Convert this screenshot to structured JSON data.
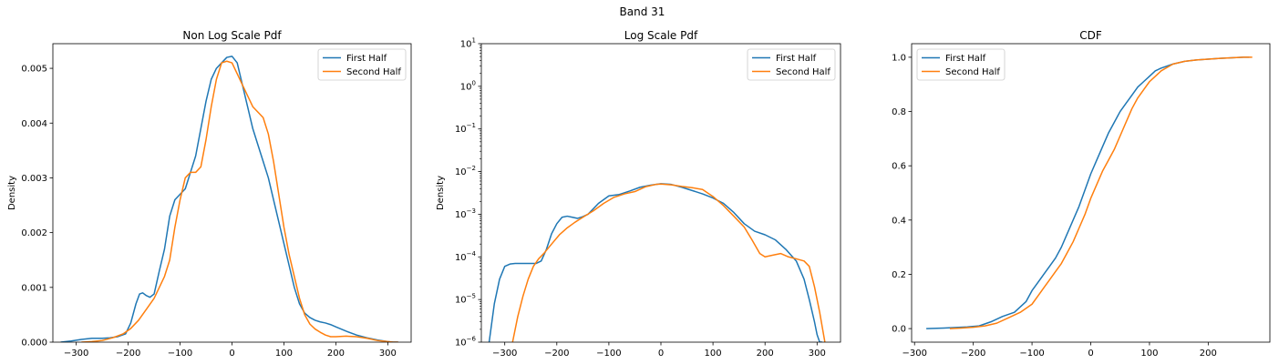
{
  "figure": {
    "title": "Band 31"
  },
  "colors": {
    "first_half": "#1f77b4",
    "second_half": "#ff7f0e"
  },
  "chart_data": [
    {
      "type": "line",
      "title": "Non Log Scale Pdf",
      "xlabel": "",
      "ylabel": "Density",
      "yscale": "linear",
      "xlim": [
        -345,
        345
      ],
      "ylim": [
        0,
        0.00545
      ],
      "xticks": [
        -300,
        -200,
        -100,
        0,
        100,
        200,
        300
      ],
      "xtick_labels": [
        "−300",
        "−200",
        "−100",
        "0",
        "100",
        "200",
        "300"
      ],
      "yticks": [
        0,
        0.001,
        0.002,
        0.003,
        0.004,
        0.005
      ],
      "ytick_labels": [
        "0.000",
        "0.001",
        "0.002",
        "0.003",
        "0.004",
        "0.005"
      ],
      "legend": {
        "position": "top-right",
        "entries": [
          "First Half",
          "Second Half"
        ]
      },
      "grid": false,
      "series": [
        {
          "name": "First Half",
          "color": "#1f77b4",
          "x": [
            -330,
            -310,
            -290,
            -270,
            -250,
            -235,
            -220,
            -205,
            -195,
            -185,
            -178,
            -172,
            -165,
            -158,
            -150,
            -140,
            -130,
            -120,
            -110,
            -100,
            -90,
            -80,
            -70,
            -60,
            -50,
            -40,
            -30,
            -20,
            -10,
            0,
            10,
            20,
            30,
            40,
            50,
            60,
            70,
            80,
            90,
            100,
            110,
            120,
            130,
            140,
            150,
            160,
            170,
            180,
            190,
            200,
            220,
            240,
            260,
            280,
            300,
            310,
            320
          ],
          "y": [
            0,
            2e-05,
            5e-05,
            7e-05,
            7e-05,
            8e-05,
            0.0001,
            0.00015,
            0.00035,
            0.0007,
            0.00088,
            0.0009,
            0.00085,
            0.00082,
            0.00088,
            0.0013,
            0.0017,
            0.0023,
            0.0026,
            0.0027,
            0.0028,
            0.0031,
            0.0034,
            0.0039,
            0.0044,
            0.0048,
            0.005,
            0.0051,
            0.0052,
            0.00522,
            0.0051,
            0.0047,
            0.0043,
            0.0039,
            0.0036,
            0.0033,
            0.003,
            0.0026,
            0.0022,
            0.0018,
            0.0014,
            0.001,
            0.0007,
            0.00053,
            0.00045,
            0.0004,
            0.00037,
            0.00035,
            0.00032,
            0.00028,
            0.0002,
            0.00013,
            8e-05,
            4e-05,
            1e-05,
            0,
            0
          ]
        },
        {
          "name": "Second Half",
          "color": "#ff7f0e",
          "x": [
            -290,
            -270,
            -250,
            -230,
            -210,
            -195,
            -180,
            -165,
            -150,
            -140,
            -130,
            -120,
            -110,
            -100,
            -90,
            -80,
            -70,
            -60,
            -50,
            -40,
            -30,
            -20,
            -10,
            0,
            10,
            20,
            30,
            40,
            50,
            60,
            70,
            80,
            90,
            100,
            110,
            120,
            130,
            140,
            150,
            160,
            170,
            180,
            190,
            200,
            220,
            240,
            260,
            280,
            300,
            310,
            320
          ],
          "y": [
            0,
            1e-05,
            3e-05,
            8e-05,
            0.00015,
            0.00025,
            0.0004,
            0.0006,
            0.0008,
            0.001,
            0.0012,
            0.0015,
            0.0021,
            0.0026,
            0.003,
            0.0031,
            0.0031,
            0.0032,
            0.0037,
            0.0043,
            0.0048,
            0.0051,
            0.00513,
            0.0051,
            0.0049,
            0.0047,
            0.0045,
            0.0043,
            0.0042,
            0.0041,
            0.0038,
            0.0033,
            0.0027,
            0.0021,
            0.0016,
            0.0012,
            0.0008,
            0.0005,
            0.00033,
            0.00024,
            0.00018,
            0.00013,
            0.0001,
            0.0001,
            0.00011,
            0.0001,
            7e-05,
            3e-05,
            1e-05,
            0,
            0
          ]
        }
      ]
    },
    {
      "type": "line",
      "title": "Log Scale Pdf",
      "xlabel": "",
      "ylabel": "Density",
      "yscale": "log",
      "xlim": [
        -345,
        345
      ],
      "ylim": [
        1e-06,
        10
      ],
      "xticks": [
        -300,
        -200,
        -100,
        0,
        100,
        200,
        300
      ],
      "xtick_labels": [
        "−300",
        "−200",
        "−100",
        "0",
        "100",
        "200",
        "300"
      ],
      "yticks": [
        1e-06,
        1e-05,
        0.0001,
        0.001,
        0.01,
        0.1,
        1,
        10
      ],
      "ytick_labels": [
        {
          "base": "10",
          "exp": "−6"
        },
        {
          "base": "10",
          "exp": "−5"
        },
        {
          "base": "10",
          "exp": "−4"
        },
        {
          "base": "10",
          "exp": "−3"
        },
        {
          "base": "10",
          "exp": "−2"
        },
        {
          "base": "10",
          "exp": "−1"
        },
        {
          "base": "10",
          "exp": "0"
        },
        {
          "base": "10",
          "exp": "1"
        }
      ],
      "legend": {
        "position": "top-right",
        "entries": [
          "First Half",
          "Second Half"
        ]
      },
      "grid": false,
      "series": [
        {
          "name": "First Half",
          "color": "#1f77b4",
          "x": [
            -330,
            -320,
            -310,
            -300,
            -290,
            -280,
            -260,
            -240,
            -230,
            -220,
            -210,
            -200,
            -190,
            -180,
            -170,
            -160,
            -150,
            -140,
            -120,
            -100,
            -80,
            -60,
            -40,
            -20,
            0,
            20,
            40,
            60,
            80,
            100,
            120,
            140,
            160,
            180,
            200,
            220,
            240,
            260,
            275,
            285,
            295,
            300,
            305,
            310
          ],
          "y": [
            1e-06,
            8e-06,
            3e-05,
            6e-05,
            6.8e-05,
            7e-05,
            7e-05,
            7e-05,
            8e-05,
            0.00015,
            0.00035,
            0.0006,
            0.00085,
            0.0009,
            0.00085,
            0.0008,
            0.00088,
            0.001,
            0.0018,
            0.0027,
            0.0029,
            0.0035,
            0.0043,
            0.0048,
            0.0052,
            0.005,
            0.0043,
            0.0036,
            0.003,
            0.0024,
            0.0018,
            0.0011,
            0.0006,
            0.0004,
            0.00033,
            0.00025,
            0.00015,
            8e-05,
            3e-05,
            1e-05,
            3e-06,
            1.5e-06,
            1e-06,
            1e-06
          ]
        },
        {
          "name": "Second Half",
          "color": "#ff7f0e",
          "x": [
            -285,
            -275,
            -265,
            -255,
            -245,
            -235,
            -225,
            -210,
            -195,
            -180,
            -165,
            -150,
            -130,
            -110,
            -90,
            -70,
            -50,
            -30,
            -10,
            0,
            20,
            40,
            60,
            80,
            100,
            120,
            140,
            160,
            175,
            190,
            200,
            215,
            230,
            245,
            260,
            275,
            285,
            295,
            305,
            315
          ],
          "y": [
            1e-06,
            4e-06,
            1.2e-05,
            3e-05,
            6e-05,
            9e-05,
            0.00012,
            0.0002,
            0.00033,
            0.00048,
            0.00065,
            0.00085,
            0.0012,
            0.0018,
            0.0025,
            0.003,
            0.0034,
            0.0044,
            0.005,
            0.0051,
            0.0049,
            0.0045,
            0.0042,
            0.0038,
            0.0026,
            0.0016,
            0.0009,
            0.0005,
            0.00025,
            0.00012,
            0.0001,
            0.00011,
            0.00012,
            0.0001,
            9e-05,
            8e-05,
            6e-05,
            2e-05,
            5e-06,
            1e-06
          ]
        }
      ]
    },
    {
      "type": "line",
      "title": "CDF",
      "xlabel": "",
      "ylabel": "",
      "yscale": "linear",
      "xlim": [
        -305,
        305
      ],
      "ylim": [
        -0.05,
        1.05
      ],
      "xticks": [
        -300,
        -200,
        -100,
        0,
        100,
        200
      ],
      "xtick_labels": [
        "−300",
        "−200",
        "−100",
        "0",
        "100",
        "200"
      ],
      "yticks": [
        0,
        0.2,
        0.4,
        0.6,
        0.8,
        1
      ],
      "ytick_labels": [
        "0.0",
        "0.2",
        "0.4",
        "0.6",
        "0.8",
        "1.0"
      ],
      "legend": {
        "position": "top-left",
        "entries": [
          "First Half",
          "Second Half"
        ]
      },
      "grid": false,
      "series": [
        {
          "name": "First Half",
          "color": "#1f77b4",
          "x": [
            -280,
            -250,
            -230,
            -210,
            -190,
            -170,
            -150,
            -130,
            -110,
            -100,
            -90,
            -80,
            -70,
            -60,
            -50,
            -40,
            -30,
            -20,
            -10,
            0,
            10,
            20,
            30,
            40,
            50,
            60,
            70,
            80,
            90,
            100,
            110,
            120,
            140,
            160,
            180,
            200,
            220,
            240,
            260,
            270
          ],
          "y": [
            0,
            0.002,
            0.004,
            0.006,
            0.01,
            0.025,
            0.045,
            0.06,
            0.1,
            0.14,
            0.17,
            0.2,
            0.23,
            0.26,
            0.3,
            0.35,
            0.4,
            0.45,
            0.51,
            0.57,
            0.62,
            0.67,
            0.72,
            0.76,
            0.8,
            0.83,
            0.86,
            0.89,
            0.91,
            0.93,
            0.95,
            0.96,
            0.975,
            0.985,
            0.99,
            0.993,
            0.996,
            0.998,
            1.0,
            1.0
          ]
        },
        {
          "name": "Second Half",
          "color": "#ff7f0e",
          "x": [
            -240,
            -220,
            -200,
            -180,
            -160,
            -140,
            -120,
            -100,
            -90,
            -80,
            -70,
            -60,
            -50,
            -40,
            -30,
            -20,
            -10,
            0,
            10,
            20,
            30,
            40,
            50,
            60,
            70,
            80,
            90,
            100,
            110,
            120,
            140,
            160,
            180,
            200,
            220,
            240,
            260,
            275
          ],
          "y": [
            0,
            0.002,
            0.005,
            0.01,
            0.02,
            0.04,
            0.06,
            0.09,
            0.12,
            0.15,
            0.18,
            0.21,
            0.24,
            0.28,
            0.32,
            0.37,
            0.42,
            0.48,
            0.53,
            0.58,
            0.62,
            0.66,
            0.71,
            0.76,
            0.81,
            0.85,
            0.88,
            0.91,
            0.93,
            0.95,
            0.975,
            0.985,
            0.99,
            0.993,
            0.996,
            0.998,
            1.0,
            1.0
          ]
        }
      ]
    }
  ]
}
